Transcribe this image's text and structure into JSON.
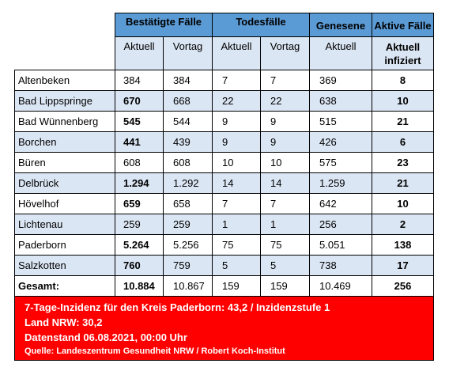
{
  "header": {
    "confirmed": "Bestätigte Fälle",
    "deaths": "Todesfälle",
    "recovered": "Genesene",
    "active": "Aktive Fälle"
  },
  "subheader": {
    "current": "Aktuell",
    "previous": "Vortag",
    "active_line1": "Aktuell",
    "active_line2": "infiziert"
  },
  "rows": [
    {
      "name": "Altenbeken",
      "confirmed": "384",
      "confirmed_prev": "384",
      "deaths": "7",
      "deaths_prev": "7",
      "recovered": "369",
      "active": "8"
    },
    {
      "name": "Bad Lippspringe",
      "confirmed": "670",
      "confirmed_prev": "668",
      "deaths": "22",
      "deaths_prev": "22",
      "recovered": "638",
      "active": "10"
    },
    {
      "name": "Bad Wünnenberg",
      "confirmed": "545",
      "confirmed_prev": "544",
      "deaths": "9",
      "deaths_prev": "9",
      "recovered": "515",
      "active": "21"
    },
    {
      "name": "Borchen",
      "confirmed": "441",
      "confirmed_prev": "439",
      "deaths": "9",
      "deaths_prev": "9",
      "recovered": "426",
      "active": "6"
    },
    {
      "name": "Büren",
      "confirmed": "608",
      "confirmed_prev": "608",
      "deaths": "10",
      "deaths_prev": "10",
      "recovered": "575",
      "active": "23"
    },
    {
      "name": "Delbrück",
      "confirmed": "1.294",
      "confirmed_prev": "1.292",
      "deaths": "14",
      "deaths_prev": "14",
      "recovered": "1.259",
      "active": "21"
    },
    {
      "name": "Hövelhof",
      "confirmed": "659",
      "confirmed_prev": "658",
      "deaths": "7",
      "deaths_prev": "7",
      "recovered": "642",
      "active": "10"
    },
    {
      "name": "Lichtenau",
      "confirmed": "259",
      "confirmed_prev": "259",
      "deaths": "1",
      "deaths_prev": "1",
      "recovered": "256",
      "active": "2"
    },
    {
      "name": "Paderborn",
      "confirmed": "5.264",
      "confirmed_prev": "5.256",
      "deaths": "75",
      "deaths_prev": "75",
      "recovered": "5.051",
      "active": "138"
    },
    {
      "name": "Salzkotten",
      "confirmed": "760",
      "confirmed_prev": "759",
      "deaths": "5",
      "deaths_prev": "5",
      "recovered": "738",
      "active": "17"
    }
  ],
  "total": {
    "name": "Gesamt:",
    "confirmed": "10.884",
    "confirmed_prev": "10.867",
    "deaths": "159",
    "deaths_prev": "159",
    "recovered": "10.469",
    "active": "256"
  },
  "banner": {
    "line1": "7-Tage-Inzidenz für den Kreis Paderborn: 43,2 / Inzidenzstufe 1",
    "line2": "Land NRW: 30,2",
    "line3": "Datenstand 06.08.2021, 00:00 Uhr",
    "source": "Quelle: Landeszentrum Gesundheit NRW / Robert Koch-Institut"
  },
  "colors": {
    "header_blue": "#5b9bd5",
    "row_light_blue": "#dbe6f4",
    "alert_red": "#ff0000"
  }
}
